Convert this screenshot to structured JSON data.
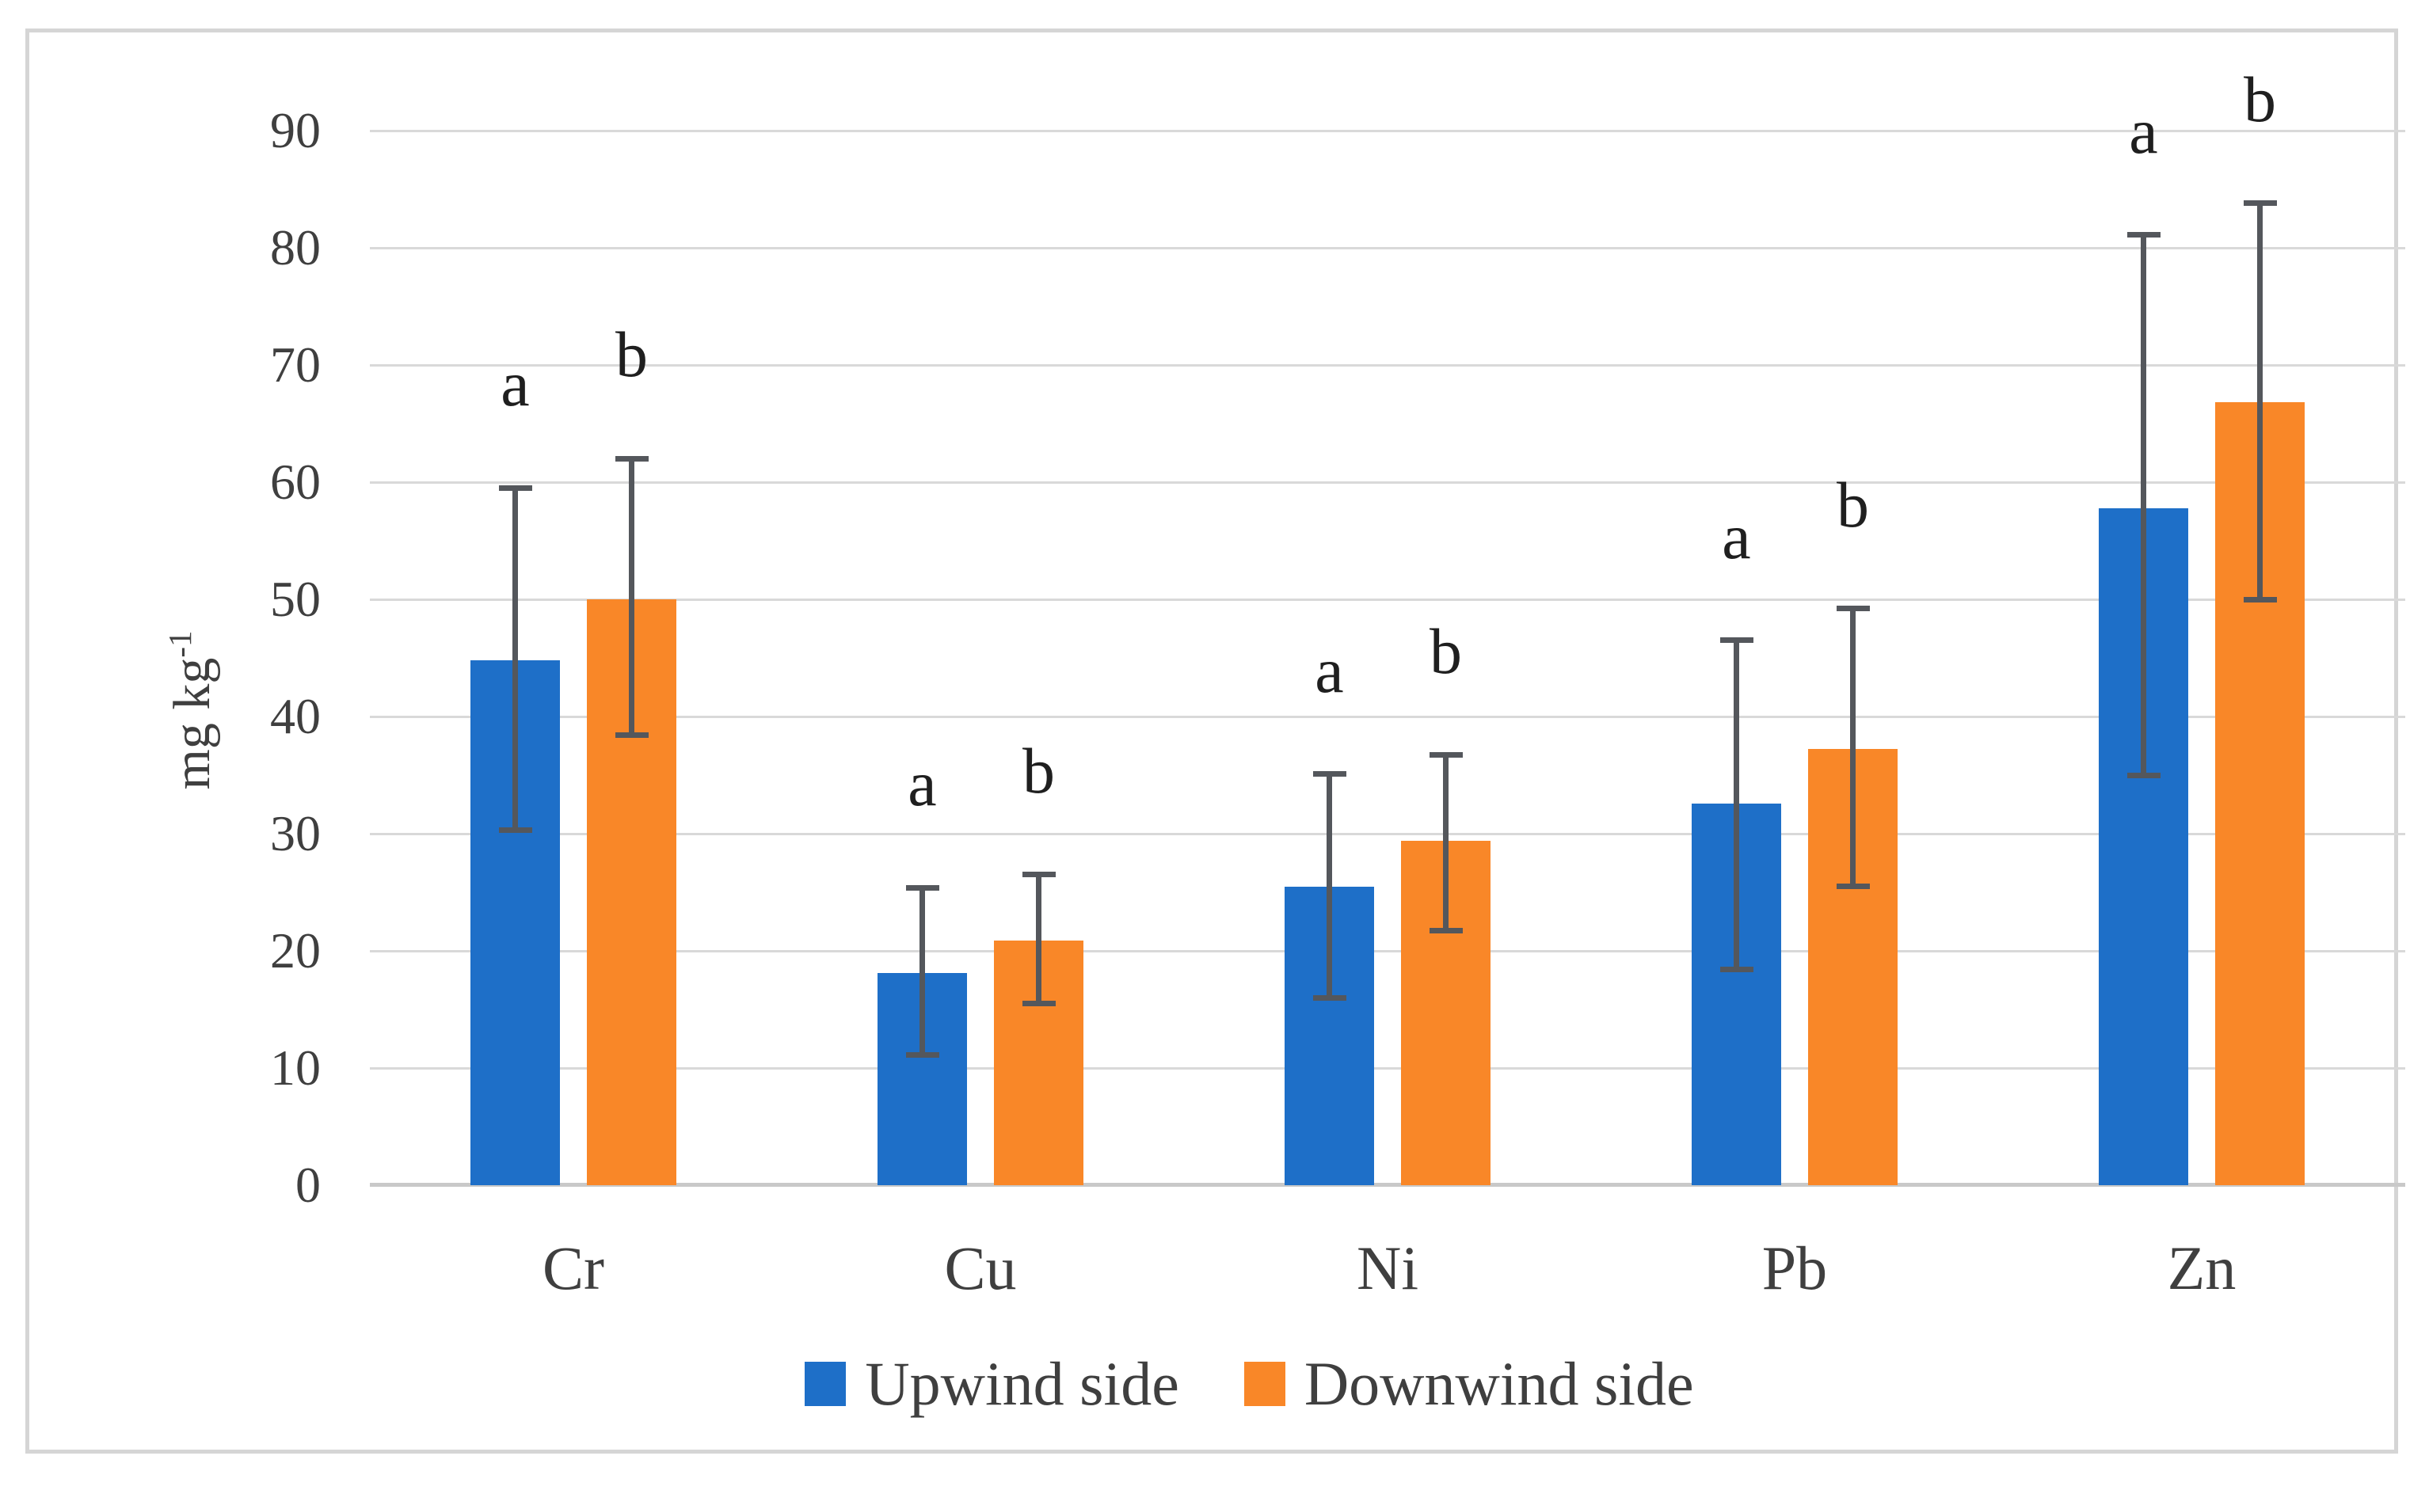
{
  "figure": {
    "ylabel_base": "mg kg",
    "ylabel_sup": "-1"
  },
  "chart_data": {
    "type": "bar",
    "title": "",
    "xlabel": "",
    "ylabel": "mg kg⁻¹",
    "categories": [
      "Cr",
      "Cu",
      "Ni",
      "Pb",
      "Zn"
    ],
    "series": [
      {
        "name": "Upwind side",
        "color": "#1E6FC8",
        "sig_letter": "a",
        "values": [
          44.8,
          18.1,
          25.5,
          32.6,
          57.8
        ],
        "err_low": [
          30.3,
          11.1,
          16.0,
          18.4,
          35.0
        ],
        "err_high": [
          59.5,
          25.4,
          35.1,
          46.5,
          81.1
        ]
      },
      {
        "name": "Downwind side",
        "color": "#F98728",
        "sig_letter": "b",
        "values": [
          50.0,
          20.9,
          29.4,
          37.2,
          66.8
        ],
        "err_low": [
          38.4,
          15.5,
          21.7,
          25.5,
          50.0
        ],
        "err_high": [
          62.0,
          26.5,
          36.7,
          49.2,
          83.8
        ]
      }
    ],
    "ylim": [
      0,
      90
    ],
    "yticks": [
      0,
      10,
      20,
      30,
      40,
      50,
      60,
      70,
      80,
      90
    ],
    "grid": true,
    "legend_position": "bottom",
    "colors": {
      "grid": "#D9D9D9",
      "baseline": "#C9C9C9",
      "error_bar": "#54575C",
      "axis_text": "#3F3F3F",
      "sig_letter": "#1F1F1F",
      "frame_border": "#D5D5D5"
    }
  }
}
